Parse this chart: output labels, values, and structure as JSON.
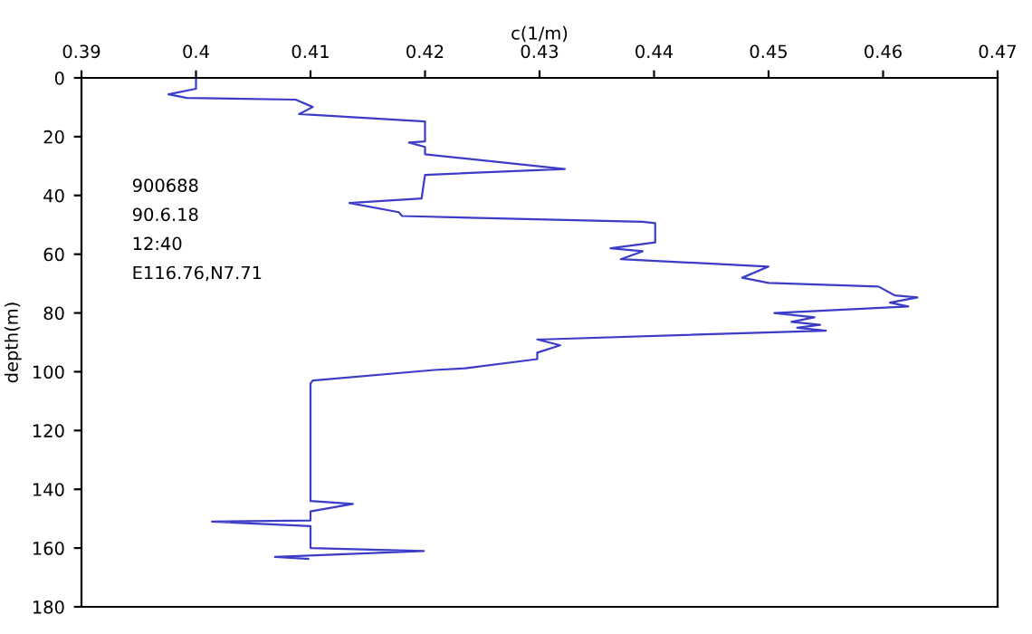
{
  "chart_data": {
    "type": "line",
    "xlabel": "c(1/m)",
    "ylabel": "depth(m)",
    "annotations": [
      "900688",
      "90.6.18",
      "12:40",
      "E116.76,N7.71"
    ],
    "series": [
      {
        "color": "#3c3cc8",
        "x": [
          0.4,
          0.4,
          0.3976,
          0.3992,
          0.4087,
          0.4102,
          0.409,
          0.42,
          0.42,
          0.4186,
          0.42,
          0.42,
          0.4322,
          0.42,
          0.4197,
          0.4134,
          0.4177,
          0.418,
          0.428,
          0.439,
          0.4401,
          0.4401,
          0.4362,
          0.439,
          0.4371,
          0.45,
          0.4477,
          0.45,
          0.4596,
          0.461,
          0.463,
          0.4606,
          0.4622,
          0.4505,
          0.454,
          0.452,
          0.4545,
          0.4525,
          0.455,
          0.4303,
          0.4298,
          0.4318,
          0.4298,
          0.4298,
          0.4235,
          0.4208,
          0.4102,
          0.41,
          0.41,
          0.4137,
          0.41,
          0.41,
          0.4014,
          0.41,
          0.41,
          0.4199,
          0.4069,
          0.4098
        ],
        "values": [
          0,
          3.7,
          5.6,
          6.8,
          7.4,
          9.9,
          12.3,
          14.8,
          21.6,
          22,
          23.5,
          26,
          31,
          33,
          41,
          42.6,
          45.7,
          47,
          48,
          49,
          49.4,
          56,
          58,
          59,
          61.7,
          64.2,
          68,
          69.8,
          71,
          74,
          74.7,
          76.5,
          77.8,
          80,
          81.5,
          83,
          84,
          85,
          86,
          89,
          89,
          91,
          93.5,
          95.7,
          98.8,
          99.4,
          103,
          104,
          144,
          145,
          147.5,
          150.6,
          151,
          152.5,
          160,
          161,
          163,
          163.7
        ]
      }
    ],
    "xlim": [
      0.39,
      0.47
    ],
    "xticks": [
      0.39,
      0.4,
      0.41,
      0.42,
      0.43,
      0.44,
      0.45,
      0.46,
      0.47
    ],
    "ylim": [
      180,
      0
    ],
    "yticks": [
      0,
      20,
      40,
      60,
      80,
      100,
      120,
      140,
      160,
      180
    ],
    "grid": false,
    "legend": false,
    "marker": "none",
    "line_style": "solid"
  }
}
